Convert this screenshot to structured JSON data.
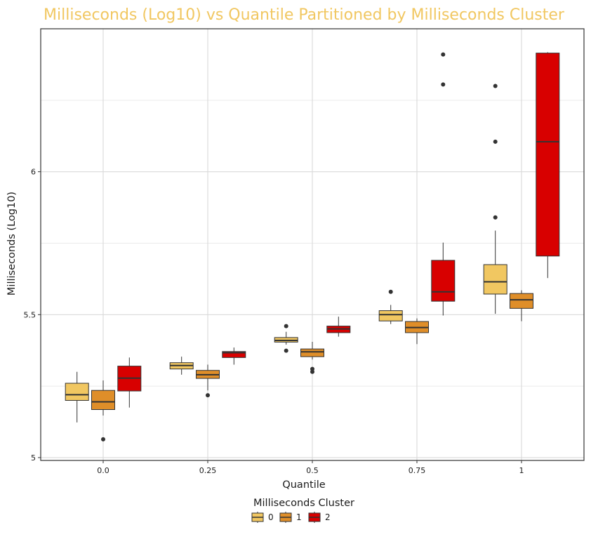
{
  "chart_data": {
    "type": "box",
    "title": "Milliseconds (Log10) vs Quantile Partitioned by Milliseconds Cluster",
    "xlabel": "Quantile",
    "ylabel": "Milliseconds (Log10)",
    "ylim": [
      4.99,
      6.5
    ],
    "major_y_ticks": [
      5,
      5.5,
      6
    ],
    "minor_y_ticks": [
      5.25,
      5.75,
      6.25
    ],
    "grid": true,
    "legend": {
      "title": "Milliseconds Cluster",
      "position": "bottom"
    },
    "categories": [
      "0.0",
      "0.25",
      "0.5",
      "0.75",
      "1"
    ],
    "series": [
      {
        "name": "0",
        "color": "#F1C761",
        "boxes": [
          {
            "low": 5.123,
            "q1": 5.2,
            "median": 5.22,
            "q3": 5.26,
            "high": 5.3,
            "outliers": []
          },
          {
            "low": 5.29,
            "q1": 5.31,
            "median": 5.322,
            "q3": 5.332,
            "high": 5.353,
            "outliers": []
          },
          {
            "low": 5.395,
            "q1": 5.404,
            "median": 5.41,
            "q3": 5.42,
            "high": 5.44,
            "outliers": [
              5.46,
              5.374
            ]
          },
          {
            "low": 5.467,
            "q1": 5.478,
            "median": 5.5,
            "q3": 5.514,
            "high": 5.534,
            "outliers": [
              5.58
            ]
          },
          {
            "low": 5.503,
            "q1": 5.572,
            "median": 5.615,
            "q3": 5.675,
            "high": 5.794,
            "outliers": [
              6.3,
              6.105,
              5.84
            ]
          }
        ]
      },
      {
        "name": "1",
        "color": "#DF8E29",
        "boxes": [
          {
            "low": 5.147,
            "q1": 5.168,
            "median": 5.195,
            "q3": 5.235,
            "high": 5.27,
            "outliers": [
              5.064
            ]
          },
          {
            "low": 5.235,
            "q1": 5.277,
            "median": 5.29,
            "q3": 5.305,
            "high": 5.325,
            "outliers": [
              5.218
            ]
          },
          {
            "low": 5.343,
            "q1": 5.353,
            "median": 5.37,
            "q3": 5.38,
            "high": 5.405,
            "outliers": [
              5.31,
              5.3
            ]
          },
          {
            "low": 5.397,
            "q1": 5.437,
            "median": 5.455,
            "q3": 5.476,
            "high": 5.487,
            "outliers": []
          },
          {
            "low": 5.477,
            "q1": 5.522,
            "median": 5.552,
            "q3": 5.574,
            "high": 5.585,
            "outliers": []
          }
        ]
      },
      {
        "name": "2",
        "color": "#D80000",
        "boxes": [
          {
            "low": 5.175,
            "q1": 5.233,
            "median": 5.278,
            "q3": 5.32,
            "high": 5.35,
            "outliers": []
          },
          {
            "low": 5.325,
            "q1": 5.35,
            "median": 5.367,
            "q3": 5.371,
            "high": 5.385,
            "outliers": []
          },
          {
            "low": 5.423,
            "q1": 5.437,
            "median": 5.45,
            "q3": 5.46,
            "high": 5.493,
            "outliers": []
          },
          {
            "low": 5.497,
            "q1": 5.547,
            "median": 5.58,
            "q3": 5.69,
            "high": 5.752,
            "outliers": [
              6.41,
              6.305
            ]
          },
          {
            "low": 5.628,
            "q1": 5.705,
            "median": 6.105,
            "q3": 6.415,
            "high": 6.418,
            "outliers": []
          }
        ]
      }
    ]
  }
}
